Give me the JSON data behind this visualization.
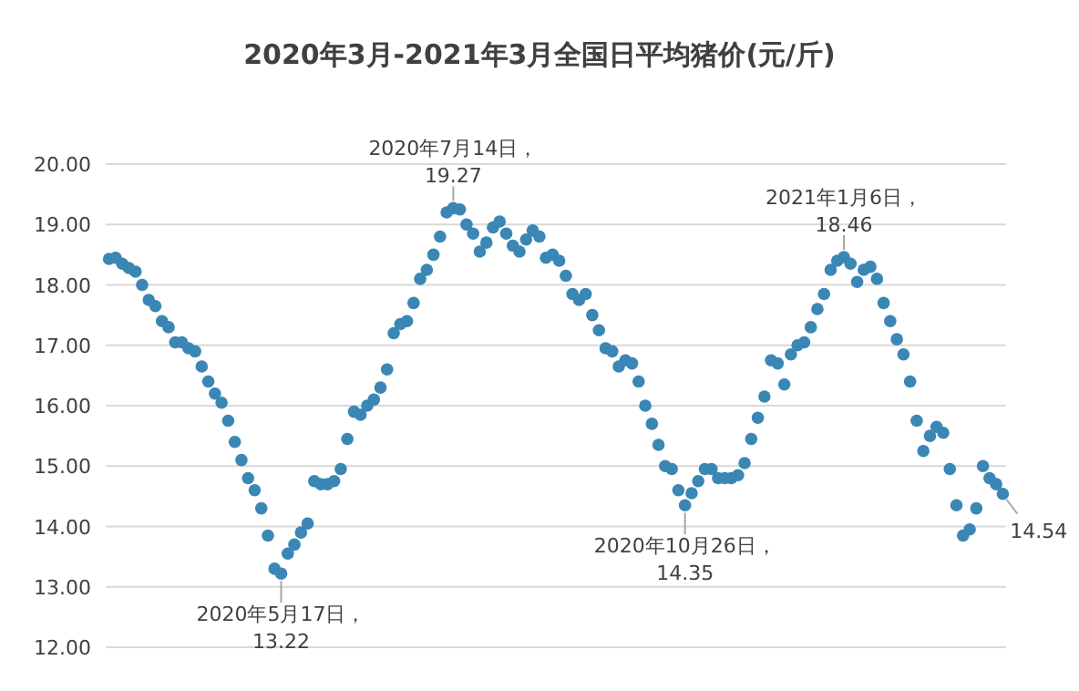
{
  "chart_data": {
    "type": "scatter",
    "title": "2020年3月-2021年3月全国日平均猪价(元/斤)",
    "categories": [
      null,
      null,
      null,
      null,
      null,
      null,
      null,
      null,
      null,
      null,
      null,
      null,
      null,
      null,
      null,
      null,
      null,
      null,
      null,
      null,
      null,
      null,
      null,
      null,
      null,
      null,
      null,
      null,
      null,
      null,
      null,
      null,
      null,
      null,
      null,
      null,
      null,
      null,
      null,
      null,
      null,
      null,
      null,
      null,
      null,
      null,
      null,
      null,
      null,
      null,
      null,
      null,
      null,
      null,
      null,
      null,
      null,
      null,
      null,
      null,
      null,
      null,
      null,
      null,
      null,
      null,
      null,
      null,
      null,
      null,
      null,
      null,
      null,
      null,
      null,
      null,
      null,
      null,
      null,
      null,
      null,
      null,
      null,
      null,
      null,
      null,
      null,
      null,
      null,
      null,
      null,
      null,
      null,
      null,
      null,
      null,
      null,
      null,
      null,
      null,
      null,
      null,
      null,
      null,
      null,
      null,
      null,
      null,
      null,
      null,
      null,
      null,
      null,
      null,
      null,
      null,
      null,
      null,
      null,
      null,
      null,
      null,
      null,
      null,
      null,
      null,
      null,
      null,
      null,
      null,
      null,
      null,
      null,
      null,
      null,
      null
    ],
    "series": [
      {
        "color": "#3a87b5",
        "values": [
          18.43,
          18.45,
          18.35,
          18.28,
          18.22,
          18.0,
          17.75,
          17.65,
          17.4,
          17.3,
          17.05,
          17.05,
          16.95,
          16.9,
          16.65,
          16.4,
          16.2,
          16.05,
          15.75,
          15.4,
          15.1,
          14.8,
          14.6,
          14.3,
          13.85,
          13.3,
          13.22,
          13.55,
          13.7,
          13.9,
          14.05,
          14.75,
          14.7,
          14.7,
          14.75,
          14.95,
          15.45,
          15.9,
          15.85,
          16.0,
          16.1,
          16.3,
          16.6,
          17.2,
          17.35,
          17.4,
          17.7,
          18.1,
          18.25,
          18.5,
          18.8,
          19.2,
          19.27,
          19.25,
          19.0,
          18.85,
          18.55,
          18.7,
          18.95,
          19.05,
          18.85,
          18.65,
          18.55,
          18.75,
          18.9,
          18.8,
          18.45,
          18.5,
          18.4,
          18.15,
          17.85,
          17.75,
          17.85,
          17.5,
          17.25,
          16.95,
          16.9,
          16.65,
          16.75,
          16.7,
          16.4,
          16.0,
          15.7,
          15.35,
          15.0,
          14.95,
          14.6,
          14.35,
          14.55,
          14.75,
          14.95,
          14.95,
          14.8,
          14.8,
          14.8,
          14.85,
          15.05,
          15.45,
          15.8,
          16.15,
          16.75,
          16.7,
          16.35,
          16.85,
          17.0,
          17.05,
          17.3,
          17.6,
          17.85,
          18.25,
          18.4,
          18.46,
          18.35,
          18.05,
          18.25,
          18.3,
          18.1,
          17.7,
          17.4,
          17.1,
          16.85,
          16.4,
          15.75,
          15.25,
          15.5,
          15.65,
          15.55,
          14.95,
          14.35,
          13.85,
          13.95,
          14.3,
          15.0,
          14.8,
          14.7,
          14.54
        ],
        "value_labels": [
          null,
          null,
          null,
          null,
          null,
          null,
          null,
          null,
          null,
          null,
          null,
          null,
          null,
          null,
          null,
          null,
          null,
          null,
          null,
          null,
          null,
          null,
          null,
          null,
          null,
          null,
          null,
          null,
          null,
          null,
          null,
          null,
          null,
          null,
          null,
          null,
          null,
          null,
          null,
          null,
          null,
          null,
          null,
          null,
          null,
          null,
          null,
          null,
          null,
          null,
          null,
          null,
          null,
          null,
          null,
          null,
          null,
          null,
          null,
          null,
          null,
          null,
          null,
          null,
          null,
          null,
          null,
          null,
          null,
          null,
          null,
          null,
          null,
          null,
          null,
          null,
          null,
          null,
          null,
          null,
          null,
          null,
          null,
          null,
          null,
          null,
          null,
          null,
          null,
          null,
          null,
          null,
          null,
          null,
          null,
          null,
          null,
          null,
          null,
          null,
          null,
          null,
          null,
          null,
          null,
          null,
          null,
          null,
          null,
          null,
          null,
          null,
          null,
          null,
          null,
          null,
          null,
          null,
          null,
          null,
          null,
          null,
          null,
          null,
          null,
          null,
          null,
          null,
          null,
          null,
          null,
          null,
          null,
          null,
          null,
          "14.54"
        ]
      }
    ],
    "ylim": [
      12,
      20
    ],
    "yticks": [
      {
        "value": 12,
        "label": "12.00"
      },
      {
        "value": 13,
        "label": "13.00"
      },
      {
        "value": 14,
        "label": "14.00"
      },
      {
        "value": 15,
        "label": "15.00"
      },
      {
        "value": 16,
        "label": "16.00"
      },
      {
        "value": 17,
        "label": "17.00"
      },
      {
        "value": 18,
        "label": "18.00"
      },
      {
        "value": 19,
        "label": "19.00"
      },
      {
        "value": 20,
        "label": "20.00"
      }
    ],
    "grid": "y",
    "marker": "circle",
    "tick_labels": "y",
    "annotations": [
      {
        "text": "2020年5月17日，13.22",
        "y": 13.22
      },
      {
        "text": "2020年7月14日，19.27",
        "y": 19.27
      },
      {
        "text": "2020年10月26日，14.35",
        "y": 14.35
      },
      {
        "text": "2021年1月6日，18.46",
        "y": 18.46
      }
    ]
  }
}
